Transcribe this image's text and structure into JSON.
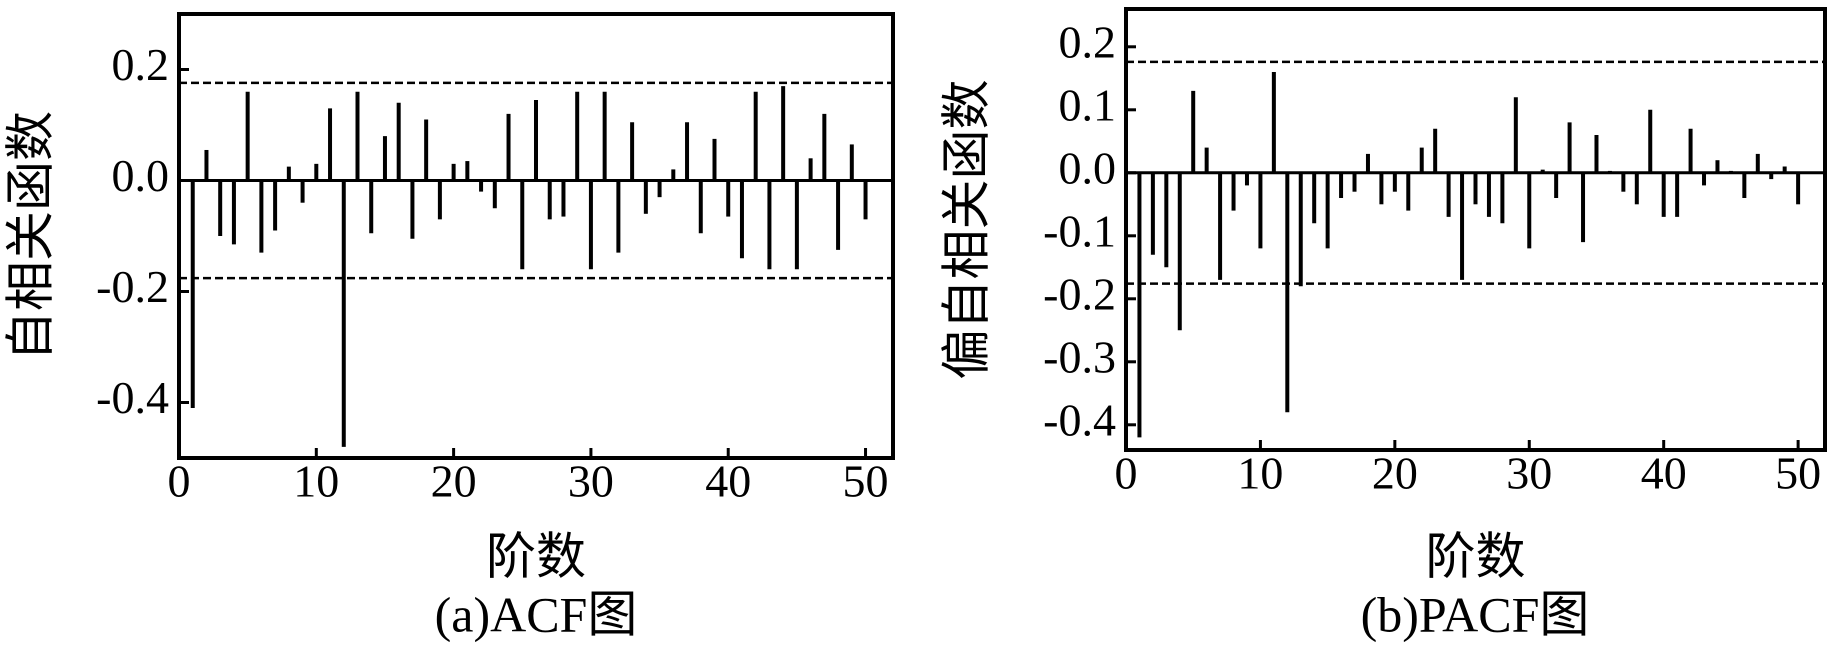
{
  "chart_data": [
    {
      "type": "stem",
      "caption": "(a)ACF图",
      "xlabel": "阶数",
      "ylabel": "自相关函数",
      "color": "#000000",
      "x": [
        1,
        2,
        3,
        4,
        5,
        6,
        7,
        8,
        9,
        10,
        11,
        12,
        13,
        14,
        15,
        16,
        17,
        18,
        19,
        20,
        21,
        22,
        23,
        24,
        25,
        26,
        27,
        28,
        29,
        30,
        31,
        32,
        33,
        34,
        35,
        36,
        37,
        38,
        39,
        40,
        41,
        42,
        43,
        44,
        45,
        46,
        47,
        48,
        49,
        50
      ],
      "values": [
        -0.41,
        0.055,
        -0.1,
        -0.115,
        0.16,
        -0.13,
        -0.09,
        0.025,
        -0.04,
        0.03,
        0.13,
        -0.48,
        0.16,
        -0.095,
        0.08,
        0.14,
        -0.105,
        0.11,
        -0.07,
        0.03,
        0.035,
        -0.02,
        -0.05,
        0.12,
        -0.16,
        0.145,
        -0.07,
        -0.065,
        0.16,
        -0.16,
        0.16,
        -0.13,
        0.105,
        -0.06,
        -0.03,
        0.02,
        0.105,
        -0.095,
        0.075,
        -0.065,
        -0.14,
        0.16,
        -0.16,
        0.17,
        -0.16,
        0.04,
        0.12,
        -0.125,
        0.065,
        -0.07
      ],
      "confidence": [
        0.176,
        -0.176
      ],
      "xlim": [
        0,
        52
      ],
      "ylim": [
        -0.5,
        0.3
      ],
      "xticks": [
        0,
        10,
        20,
        30,
        40,
        50
      ],
      "yticks": [
        -0.4,
        -0.2,
        {
          "value": 0,
          "label": "0.0"
        },
        0.2
      ]
    },
    {
      "type": "stem",
      "caption": "(b)PACF图",
      "xlabel": "阶数",
      "ylabel": "偏自相关函数",
      "color": "#000000",
      "x": [
        1,
        2,
        3,
        4,
        5,
        6,
        7,
        8,
        9,
        10,
        11,
        12,
        13,
        14,
        15,
        16,
        17,
        18,
        19,
        20,
        21,
        22,
        23,
        24,
        25,
        26,
        27,
        28,
        29,
        30,
        31,
        32,
        33,
        34,
        35,
        36,
        37,
        38,
        39,
        40,
        41,
        42,
        43,
        44,
        45,
        46,
        47,
        48,
        49,
        50
      ],
      "values": [
        -0.42,
        -0.13,
        -0.15,
        -0.25,
        0.13,
        0.04,
        -0.17,
        -0.06,
        -0.02,
        -0.12,
        0.16,
        -0.38,
        -0.18,
        -0.08,
        -0.12,
        -0.04,
        -0.03,
        0.03,
        -0.05,
        -0.03,
        -0.06,
        0.04,
        0.07,
        -0.07,
        -0.17,
        -0.05,
        -0.07,
        -0.08,
        0.12,
        -0.12,
        0.005,
        -0.04,
        0.08,
        -0.11,
        0.06,
        0.003,
        -0.03,
        -0.05,
        0.1,
        -0.07,
        -0.07,
        0.07,
        -0.02,
        0.02,
        0.003,
        -0.04,
        0.03,
        -0.01,
        0.01,
        -0.05
      ],
      "confidence": [
        0.176,
        -0.176
      ],
      "xlim": [
        0,
        52
      ],
      "ylim": [
        -0.44,
        0.26
      ],
      "xticks": [
        0,
        10,
        20,
        30,
        40,
        50
      ],
      "yticks": [
        -0.4,
        -0.3,
        -0.2,
        -0.1,
        {
          "value": 0,
          "label": "0.0"
        },
        0.1,
        0.2
      ]
    }
  ]
}
